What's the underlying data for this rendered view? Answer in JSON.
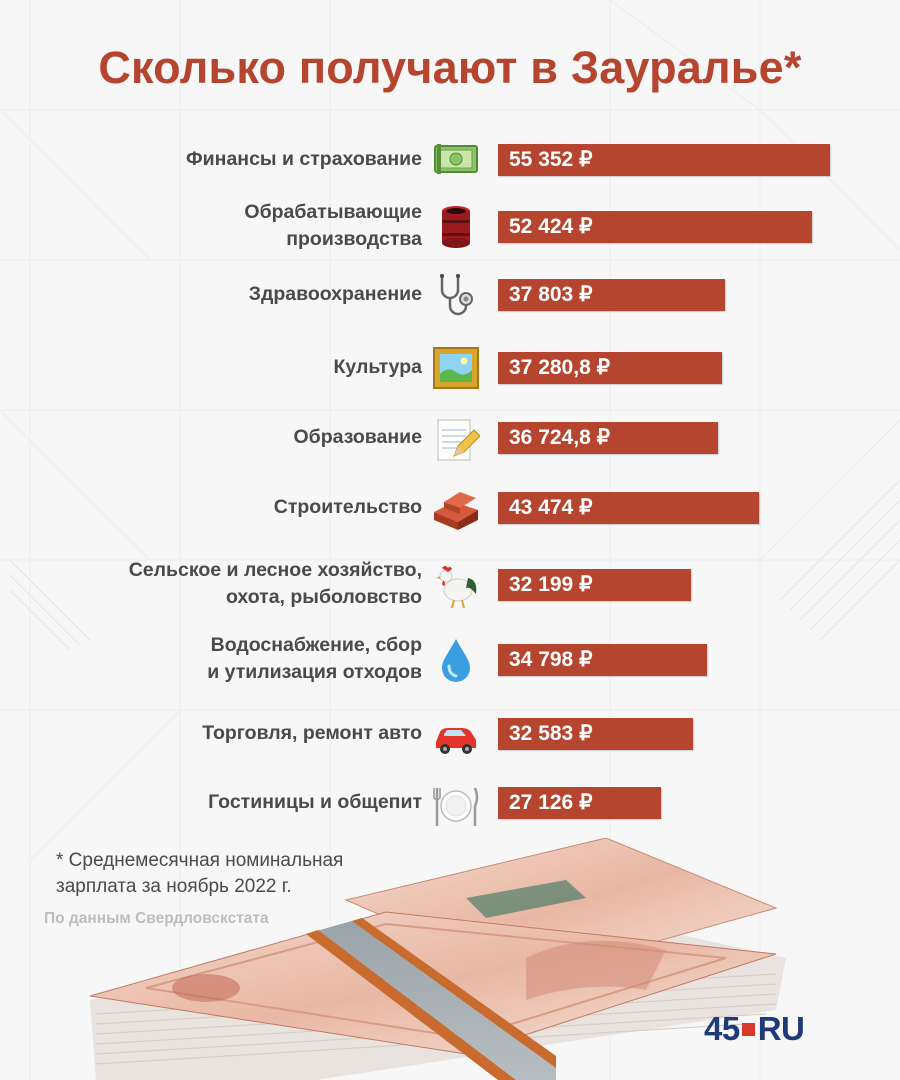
{
  "title": "Сколько получают в Зауралье*",
  "footnote": {
    "line1": "* Среднемесячная номинальная",
    "line2": "зарплата за ноябрь 2022 г."
  },
  "source": "По данным Свердловскстата",
  "logo": {
    "num": "45",
    "ru": "RU"
  },
  "colors": {
    "bar": "#b5452f",
    "title": "#b5452f",
    "text": "#4a4a4a"
  },
  "chart_data": {
    "type": "bar",
    "orientation": "horizontal",
    "title": "Сколько получают в Зауралье*",
    "xlim": [
      0,
      60000
    ],
    "categories": [
      [
        "Финансы и страхование"
      ],
      [
        "Обрабатывающие",
        "производства"
      ],
      [
        "Здравоохранение"
      ],
      [
        "Культура"
      ],
      [
        "Образование"
      ],
      [
        "Строительство"
      ],
      [
        "Сельское и лесное хозяйство,",
        "охота, рыболовство"
      ],
      [
        "Водоснабжение, сбор",
        "и утилизация отходов"
      ],
      [
        "Торговля, ремонт авто"
      ],
      [
        "Гостиницы и общепит"
      ]
    ],
    "values": [
      55352,
      52424,
      37803,
      37280.8,
      36724.8,
      43474,
      32199,
      34798,
      32583,
      27126
    ],
    "labels": [
      "55 352 ₽",
      "52 424 ₽",
      "37 803 ₽",
      "37 280,8 ₽",
      "36 724,8 ₽",
      "43 474 ₽",
      "32 199 ₽",
      "34 798 ₽",
      "32 583 ₽",
      "27 126 ₽"
    ],
    "icons": [
      "money-icon",
      "barrel-icon",
      "stethoscope-icon",
      "picture-icon",
      "notepad-icon",
      "bricks-icon",
      "rooster-icon",
      "water-drop-icon",
      "car-icon",
      "plate-icon"
    ]
  }
}
